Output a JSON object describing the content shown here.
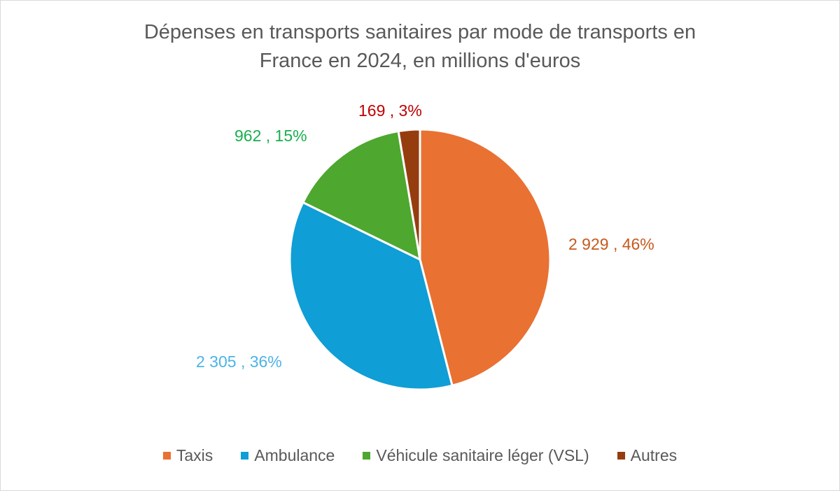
{
  "chart_data": {
    "type": "pie",
    "title": "Dépenses en transports sanitaires par mode de transports en France en 2024, en millions d'euros",
    "title_lines": [
      "Dépenses en transports sanitaires par mode de transports en",
      "France en 2024, en millions d'euros"
    ],
    "unit": "millions d'euros",
    "start_angle": "12 o'clock, clockwise",
    "legend_position": "bottom",
    "slices": [
      {
        "label": "Taxis",
        "value": 2929,
        "value_label": "2 929",
        "percent_label": "46%",
        "color": "#E97132",
        "label_color": "#C55A1E"
      },
      {
        "label": "Ambulance",
        "value": 2305,
        "value_label": "2 305",
        "percent_label": "36%",
        "color": "#0F9ED5",
        "label_color": "#4DB3E6"
      },
      {
        "label": "Véhicule sanitaire léger (VSL)",
        "value": 962,
        "value_label": "962",
        "percent_label": "15%",
        "color": "#4EA72E",
        "label_color": "#1AAE50"
      },
      {
        "label": "Autres",
        "value": 169,
        "value_label": "169",
        "percent_label": "3%",
        "color": "#963D10",
        "label_color": "#C00000"
      }
    ]
  }
}
